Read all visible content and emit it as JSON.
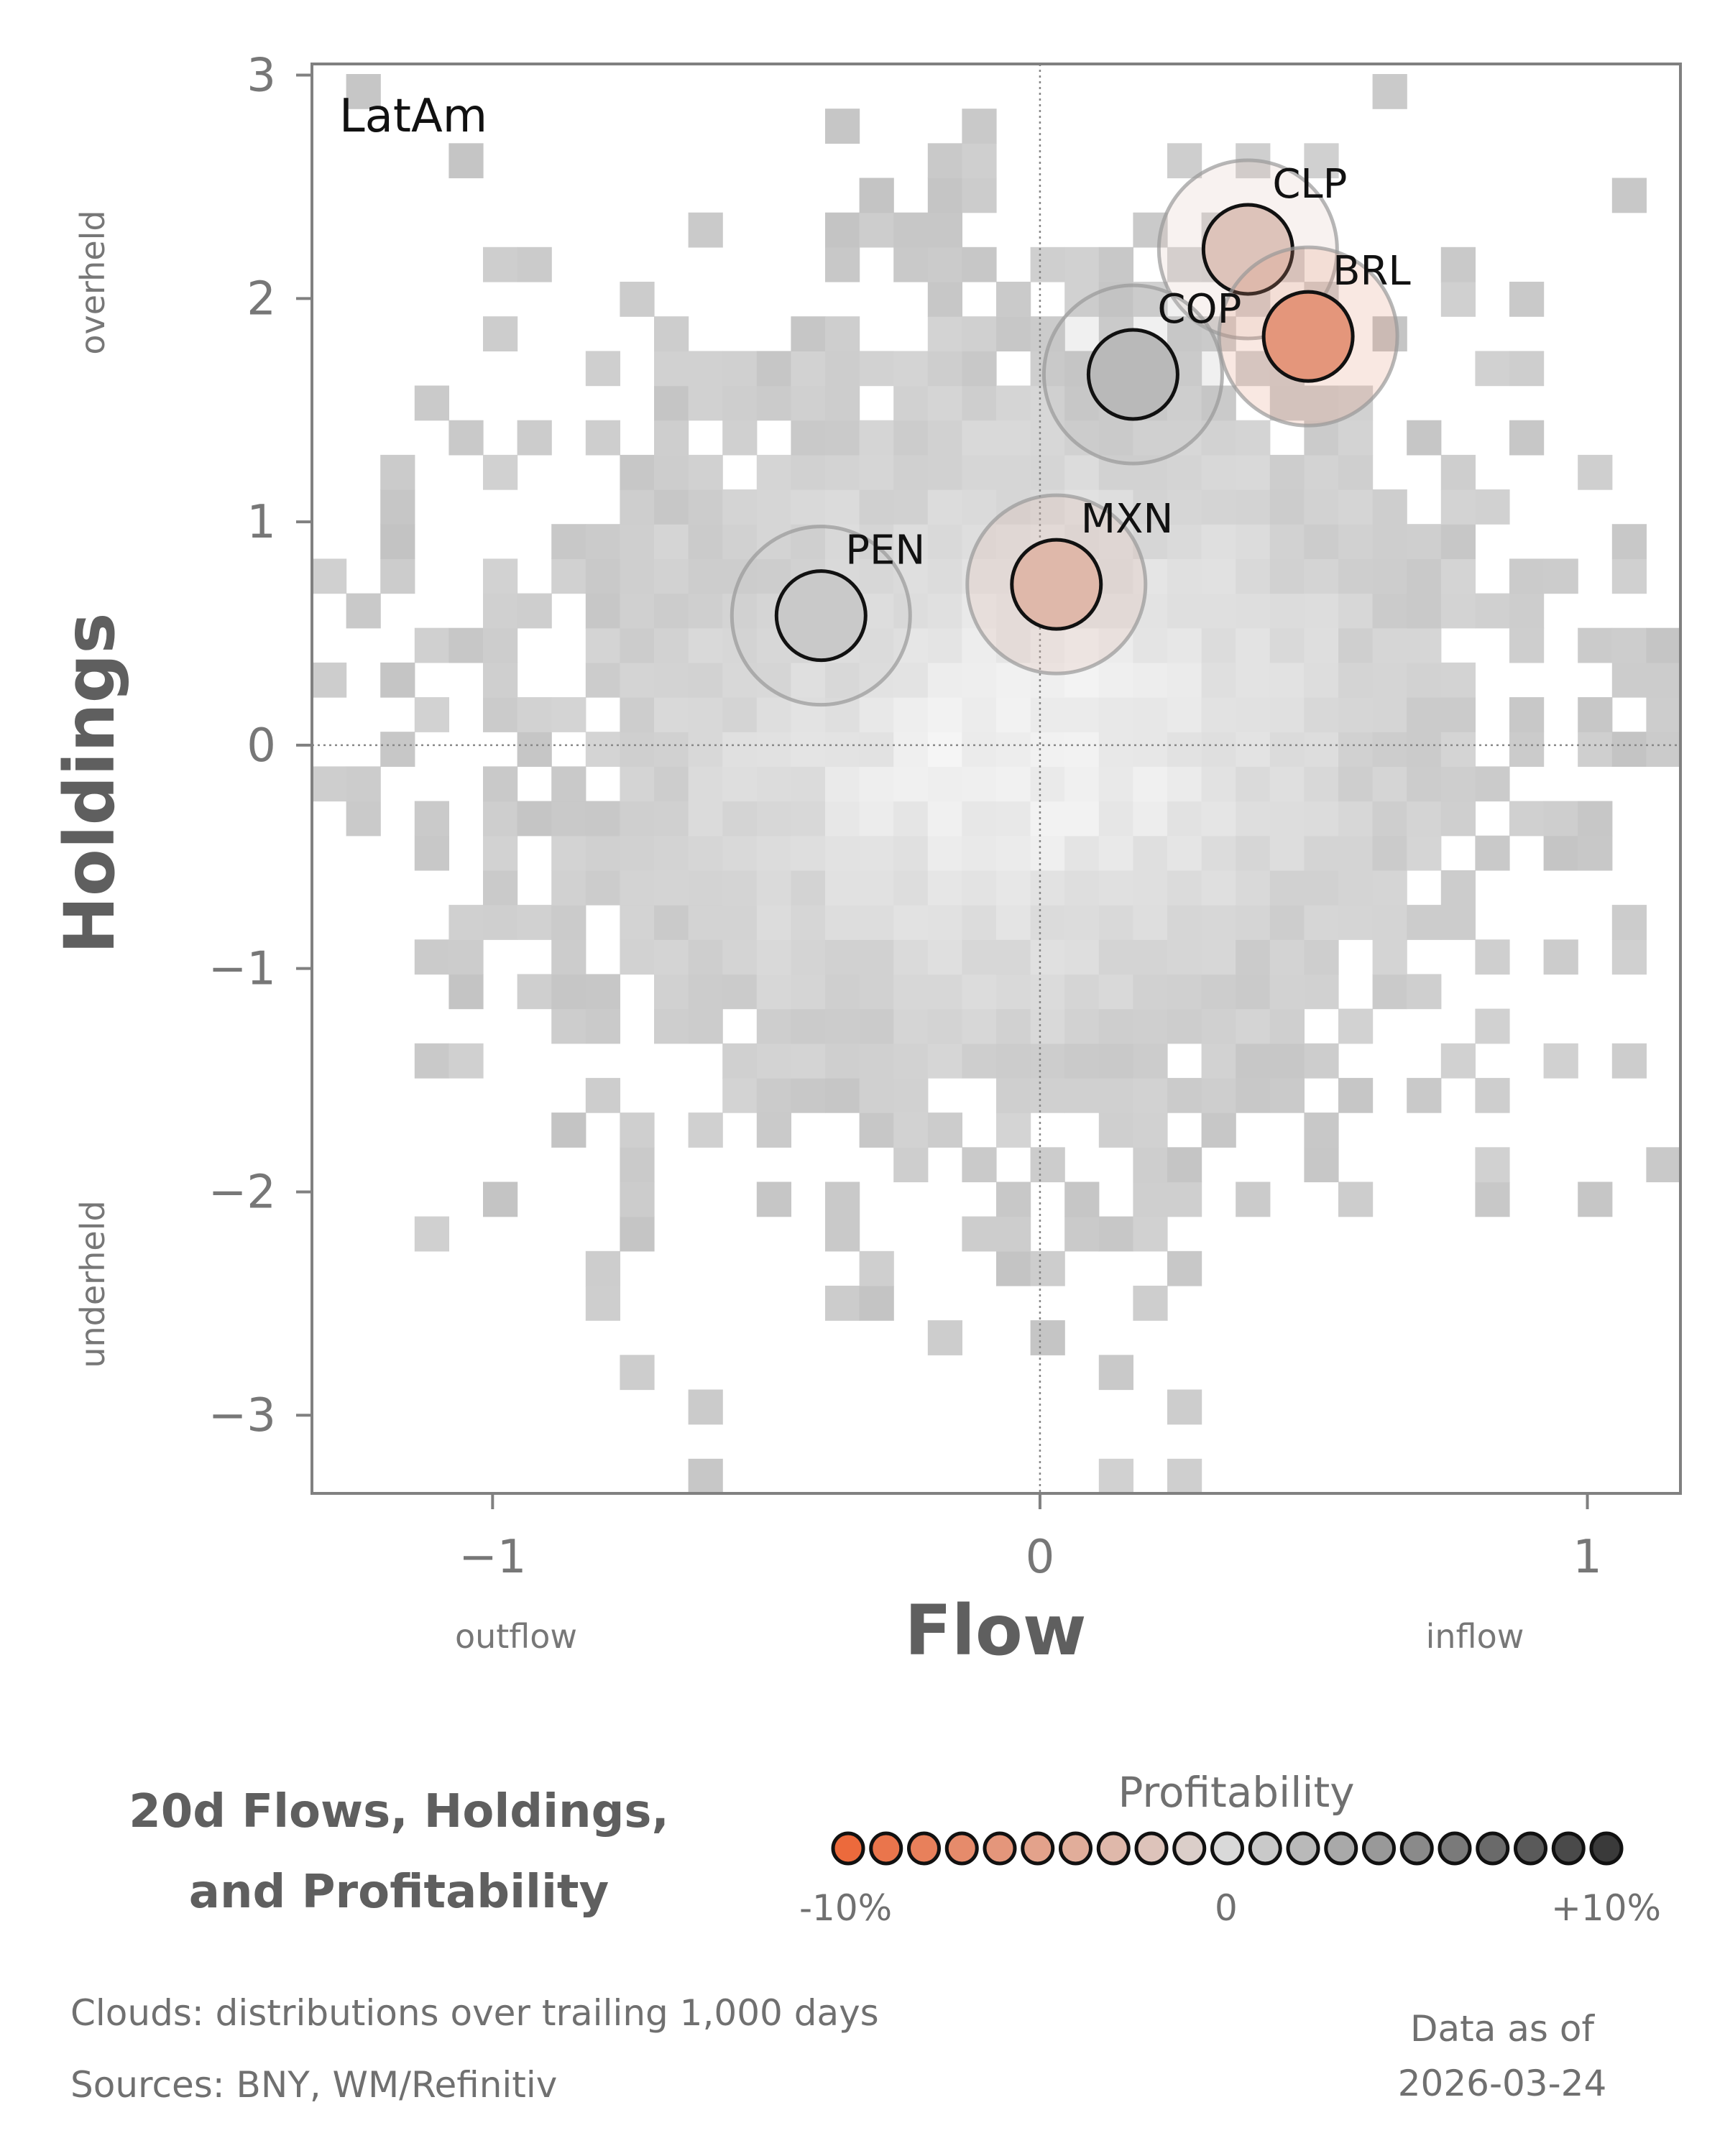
{
  "chart_data": {
    "type": "scatter",
    "panel_label": "LatAm",
    "xlabel": "Flow",
    "ylabel": "Holdings",
    "x_low_label": "outflow",
    "x_high_label": "inflow",
    "y_low_label": "underheld",
    "y_high_label": "overheld",
    "xlim": [
      -1.33,
      1.17
    ],
    "ylim": [
      -3.35,
      3.05
    ],
    "xticks": [
      -1,
      0,
      1
    ],
    "xtick_labels": [
      "−1",
      "0",
      "1"
    ],
    "yticks": [
      3,
      2,
      1,
      0,
      -1,
      -2,
      -3
    ],
    "ytick_labels": [
      "3",
      "2",
      "1",
      "0",
      "−1",
      "−2",
      "−3"
    ],
    "reference_lines": {
      "x": 0,
      "y": 0
    },
    "background": "2D histogram cloud of trailing 1,000-day distributions",
    "points": [
      {
        "label": "CLP",
        "flow": 0.38,
        "holdings": 2.22,
        "profitability": -2
      },
      {
        "label": "BRL",
        "flow": 0.49,
        "holdings": 1.83,
        "profitability": -6
      },
      {
        "label": "COP",
        "flow": 0.17,
        "holdings": 1.66,
        "profitability": 2
      },
      {
        "label": "MXN",
        "flow": 0.03,
        "holdings": 0.72,
        "profitability": -3
      },
      {
        "label": "PEN",
        "flow": -0.4,
        "holdings": 0.58,
        "profitability": 1
      }
    ],
    "colorbar": {
      "title": "Profitability",
      "min_label": "-10%",
      "mid_label": "0",
      "max_label": "+10%",
      "min": -10,
      "max": 10,
      "steps": 21,
      "low_color": "#ec6a3c",
      "mid_color": "#d9d9d9",
      "high_color": "#3a3a3a"
    }
  },
  "footer": {
    "title_line1": "20d Flows, Holdings,",
    "title_line2": "and Profitability",
    "clouds_note": "Clouds:  distributions over trailing 1,000 days",
    "sources_note": "Sources:  BNY, WM/Refinitiv",
    "date_label": "Data as of",
    "date_value": "2026-03-24"
  },
  "colors": {
    "frame": "#808080",
    "cloud_base": "#c8c8c8",
    "text_dark": "#111111",
    "text_muted": "#777777"
  }
}
